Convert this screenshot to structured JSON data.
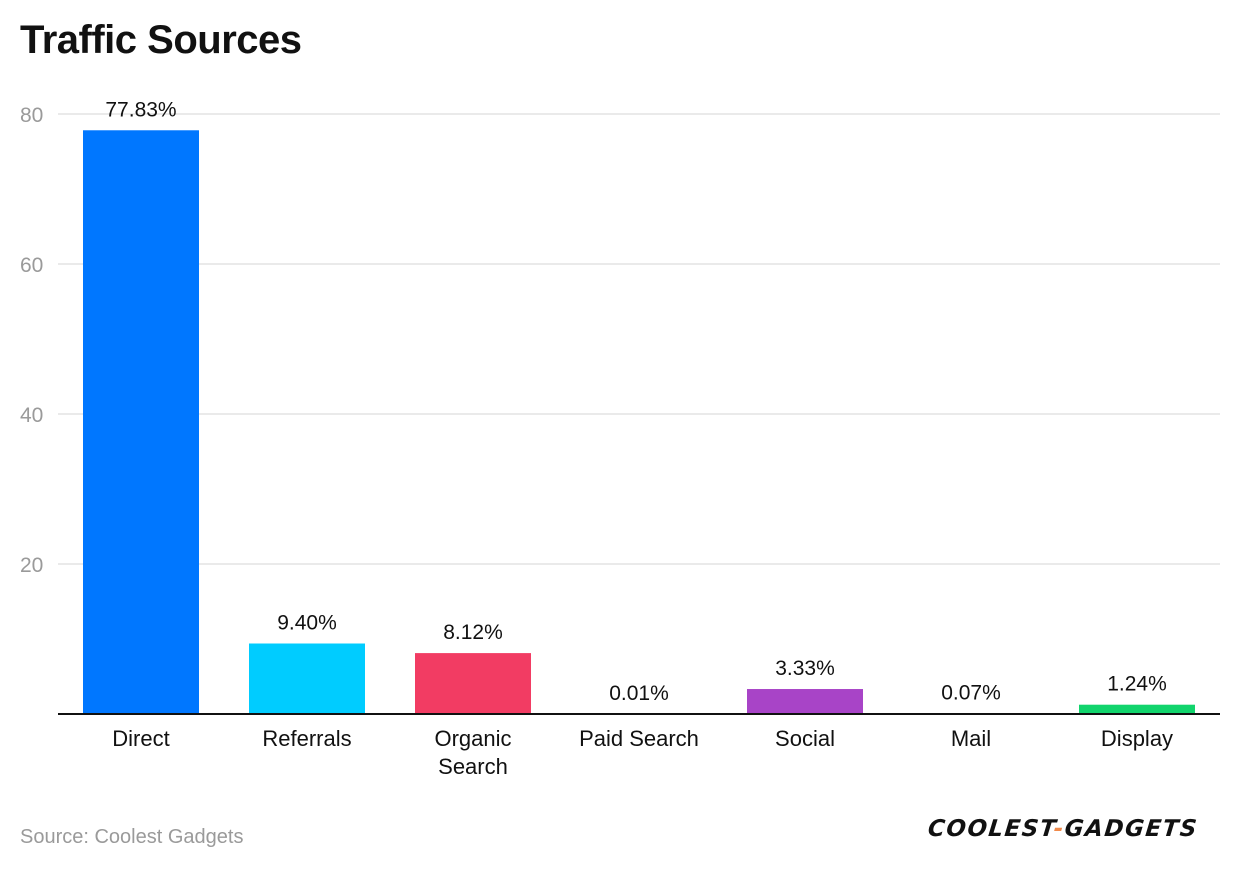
{
  "title": "Traffic Sources",
  "source": "Source: Coolest Gadgets",
  "logo": {
    "part1": "COOLEST",
    "separator": "-",
    "part2": "GADGETS",
    "separator_color": "#f08a4b"
  },
  "chart_data": {
    "type": "bar",
    "categories": [
      [
        "Direct"
      ],
      [
        "Referrals"
      ],
      [
        "Organic",
        "Search"
      ],
      [
        "Paid Search"
      ],
      [
        "Social"
      ],
      [
        "Mail"
      ],
      [
        "Display"
      ]
    ],
    "values": [
      77.83,
      9.4,
      8.12,
      0.01,
      3.33,
      0.07,
      1.24
    ],
    "value_labels": [
      "77.83%",
      "9.40%",
      "8.12%",
      "0.01%",
      "3.33%",
      "0.07%",
      "1.24%"
    ],
    "colors": [
      "#0077ff",
      "#00ccff",
      "#f23c63",
      "#ffab1f",
      "#a844c7",
      "#2ad3d6",
      "#11d46c"
    ],
    "ylim": [
      0,
      80
    ],
    "yticks": [
      20,
      40,
      60,
      80
    ],
    "grid": true,
    "xlabel": "",
    "ylabel": ""
  }
}
